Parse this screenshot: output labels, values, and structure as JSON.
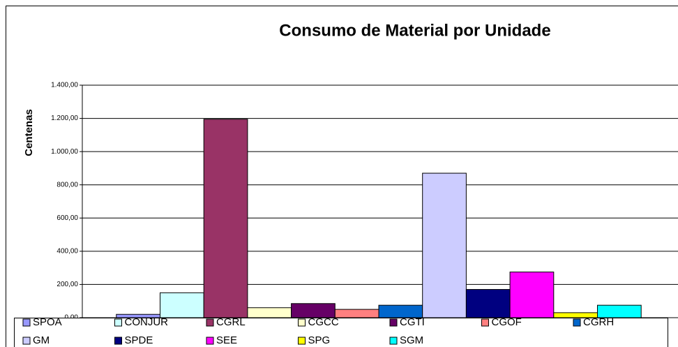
{
  "chart_data": {
    "type": "bar",
    "title": "Consumo de Material por Unidade",
    "y_label": "Centenas",
    "categories": [
      null
    ],
    "series": [
      {
        "name": "SPOA",
        "color": "#9999ff",
        "values": [
          20
        ]
      },
      {
        "name": "CONJUR",
        "color": "#ccffff",
        "values": [
          150
        ]
      },
      {
        "name": "CGRL",
        "color": "#993366",
        "values": [
          1195
        ]
      },
      {
        "name": "CGCC",
        "color": "#ffffcc",
        "values": [
          60
        ]
      },
      {
        "name": "CGTI",
        "color": "#660066",
        "values": [
          85
        ]
      },
      {
        "name": "CGOF",
        "color": "#ff8080",
        "values": [
          50
        ]
      },
      {
        "name": "CGRH",
        "color": "#0066cc",
        "values": [
          75
        ]
      },
      {
        "name": "GM",
        "color": "#ccccff",
        "values": [
          870
        ]
      },
      {
        "name": "SPDE",
        "color": "#000080",
        "values": [
          170
        ]
      },
      {
        "name": "SEE",
        "color": "#ff00ff",
        "values": [
          275
        ]
      },
      {
        "name": "SPG",
        "color": "#ffff00",
        "values": [
          30
        ]
      },
      {
        "name": "SGM",
        "color": "#00ffff",
        "values": [
          75
        ]
      }
    ],
    "ylim": [
      0,
      1400
    ],
    "yticks": [
      {
        "value": 0,
        "label": "0,00"
      },
      {
        "value": 200,
        "label": "200,00"
      },
      {
        "value": 400,
        "label": "400,00"
      },
      {
        "value": 600,
        "label": "600,00"
      },
      {
        "value": 800,
        "label": "800,00"
      },
      {
        "value": 1000,
        "label": "1.000,00"
      },
      {
        "value": 1200,
        "label": "1.200,00"
      },
      {
        "value": 1400,
        "label": "1.400,00"
      }
    ],
    "grid": true,
    "legend": "bottom"
  }
}
